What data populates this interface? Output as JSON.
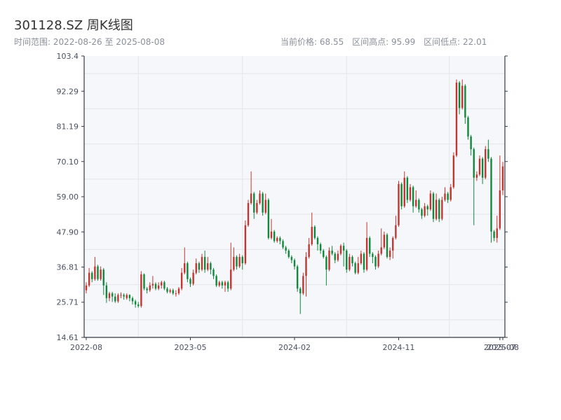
{
  "header": {
    "title": "301128.SZ 周K线图",
    "range_label": "时间范围:",
    "range_start": "2022-08-26",
    "range_sep": "至",
    "range_end": "2025-08-08",
    "current_label": "当前价格:",
    "current_value": "68.55",
    "high_label": "区间高点:",
    "high_value": "95.99",
    "low_label": "区间低点:",
    "low_value": "22.01"
  },
  "colors": {
    "up": "#c23531",
    "down": "#12883c",
    "plot_bg": "#f5f7fa",
    "grid": "#e3e6eb",
    "axis": "#333a45",
    "tick_text": "#4a5060"
  },
  "chart_data": {
    "type": "candlestick",
    "title": "301128.SZ 周K线图",
    "ylim": [
      14.61,
      103.4
    ],
    "y_ticks": [
      "14.61",
      "25.71",
      "36.81",
      "47.90",
      "59.00",
      "70.10",
      "81.19",
      "92.29",
      "103.4"
    ],
    "x_ticks": [
      {
        "label": "2022-08",
        "week": 0
      },
      {
        "label": "2023-05",
        "week": 36
      },
      {
        "label": "2024-02",
        "week": 72
      },
      {
        "label": "2024-11",
        "week": 108
      },
      {
        "label": "2025-07",
        "week": 143
      },
      {
        "label": "2025-08",
        "week": 144
      }
    ],
    "week_count": 145,
    "grid": true,
    "candles": [
      [
        0,
        29.5,
        31.0,
        32.0,
        28.5
      ],
      [
        1,
        31.0,
        35.0,
        36.5,
        30.5
      ],
      [
        2,
        35.0,
        33.0,
        35.5,
        32.0
      ],
      [
        3,
        33.0,
        37.0,
        40.0,
        32.5
      ],
      [
        4,
        37.0,
        33.0,
        37.5,
        32.5
      ],
      [
        5,
        33.0,
        36.0,
        37.0,
        32.5
      ],
      [
        6,
        36.0,
        31.0,
        36.5,
        28.0
      ],
      [
        7,
        31.0,
        27.0,
        32.0,
        25.5
      ],
      [
        8,
        27.0,
        28.5,
        29.0,
        26.0
      ],
      [
        9,
        28.5,
        27.5,
        29.0,
        25.8
      ],
      [
        10,
        27.5,
        26.0,
        28.5,
        25.5
      ],
      [
        11,
        26.0,
        28.0,
        28.5,
        25.5
      ],
      [
        12,
        28.0,
        28.0,
        28.8,
        27.0
      ],
      [
        13,
        28.0,
        27.5,
        28.5,
        26.5
      ],
      [
        14,
        27.0,
        28.0,
        28.5,
        26.5
      ],
      [
        15,
        28.0,
        27.0,
        28.2,
        26.0
      ],
      [
        16,
        27.0,
        26.0,
        27.5,
        25.0
      ],
      [
        17,
        26.0,
        25.0,
        26.5,
        24.0
      ],
      [
        18,
        25.0,
        24.5,
        25.8,
        24.0
      ],
      [
        19,
        24.5,
        34.5,
        35.5,
        24.0
      ],
      [
        20,
        34.5,
        30.0,
        34.8,
        29.5
      ],
      [
        21,
        30.0,
        29.5,
        30.5,
        28.5
      ],
      [
        22,
        29.5,
        31.0,
        32.0,
        29.0
      ],
      [
        23,
        31.0,
        31.5,
        34.0,
        30.0
      ],
      [
        24,
        31.5,
        30.0,
        32.0,
        29.5
      ],
      [
        25,
        30.0,
        31.0,
        32.0,
        29.5
      ],
      [
        26,
        31.0,
        32.0,
        32.5,
        30.0
      ],
      [
        27,
        32.0,
        30.0,
        32.5,
        29.5
      ],
      [
        28,
        30.0,
        29.0,
        30.5,
        28.5
      ],
      [
        29,
        29.0,
        29.5,
        30.0,
        28.5
      ],
      [
        30,
        29.5,
        28.5,
        30.0,
        28.0
      ],
      [
        31,
        28.5,
        28.5,
        29.5,
        27.5
      ],
      [
        32,
        28.5,
        30.0,
        30.5,
        28.0
      ],
      [
        33,
        30.0,
        35.0,
        36.5,
        29.5
      ],
      [
        34,
        35.0,
        38.0,
        43.0,
        34.5
      ],
      [
        35,
        38.0,
        33.0,
        38.5,
        32.0
      ],
      [
        36,
        33.0,
        31.5,
        33.5,
        30.5
      ],
      [
        37,
        31.5,
        35.0,
        36.0,
        31.0
      ],
      [
        38,
        35.0,
        38.0,
        39.5,
        34.5
      ],
      [
        39,
        38.0,
        36.0,
        38.5,
        35.0
      ],
      [
        40,
        36.0,
        40.0,
        41.0,
        35.5
      ],
      [
        41,
        40.0,
        36.0,
        42.0,
        35.0
      ],
      [
        42,
        36.0,
        38.0,
        40.0,
        35.5
      ],
      [
        43,
        38.0,
        36.0,
        38.5,
        34.5
      ],
      [
        44,
        36.0,
        34.0,
        36.5,
        33.0
      ],
      [
        45,
        34.0,
        31.0,
        34.5,
        30.5
      ],
      [
        46,
        31.0,
        32.0,
        32.5,
        30.5
      ],
      [
        47,
        32.0,
        31.0,
        32.5,
        30.0
      ],
      [
        48,
        31.0,
        32.0,
        32.5,
        29.0
      ],
      [
        49,
        32.0,
        30.0,
        32.5,
        29.0
      ],
      [
        50,
        30.0,
        36.0,
        44.5,
        29.5
      ],
      [
        51,
        36.0,
        40.0,
        43.0,
        35.5
      ],
      [
        52,
        40.0,
        37.0,
        40.5,
        36.0
      ],
      [
        53,
        37.0,
        40.0,
        41.0,
        36.5
      ],
      [
        54,
        40.0,
        38.0,
        40.5,
        36.0
      ],
      [
        55,
        38.0,
        50.0,
        51.5,
        37.5
      ],
      [
        56,
        50.0,
        57.0,
        58.0,
        49.5
      ],
      [
        57,
        57.0,
        60.0,
        67.0,
        56.5
      ],
      [
        58,
        60.0,
        54.0,
        60.5,
        52.0
      ],
      [
        59,
        54.0,
        57.0,
        58.0,
        53.5
      ],
      [
        60,
        57.0,
        60.0,
        61.0,
        56.5
      ],
      [
        61,
        60.0,
        54.0,
        60.5,
        53.0
      ],
      [
        62,
        54.0,
        58.0,
        60.0,
        53.5
      ],
      [
        63,
        58.0,
        46.0,
        58.5,
        45.5
      ],
      [
        64,
        46.0,
        48.0,
        52.0,
        45.5
      ],
      [
        65,
        48.0,
        45.0,
        48.5,
        44.5
      ],
      [
        66,
        45.0,
        46.0,
        46.5,
        44.5
      ],
      [
        67,
        46.0,
        45.0,
        46.5,
        44.0
      ],
      [
        68,
        45.0,
        43.0,
        45.5,
        42.5
      ],
      [
        69,
        43.0,
        42.0,
        43.5,
        41.0
      ],
      [
        70,
        42.0,
        40.0,
        42.5,
        39.5
      ],
      [
        71,
        40.0,
        39.0,
        40.5,
        38.0
      ],
      [
        72,
        39.0,
        37.0,
        39.5,
        36.0
      ],
      [
        73,
        37.0,
        30.0,
        37.5,
        29.0
      ],
      [
        74,
        30.0,
        28.5,
        30.5,
        22.0
      ],
      [
        75,
        28.5,
        34.0,
        35.0,
        28.0
      ],
      [
        76,
        34.0,
        40.0,
        41.5,
        27.5
      ],
      [
        77,
        40.0,
        44.0,
        46.0,
        39.5
      ],
      [
        78,
        44.0,
        49.5,
        54.0,
        43.5
      ],
      [
        79,
        49.5,
        46.0,
        50.0,
        45.5
      ],
      [
        80,
        46.0,
        44.0,
        46.5,
        42.0
      ],
      [
        81,
        44.0,
        42.0,
        44.5,
        41.0
      ],
      [
        82,
        42.0,
        40.0,
        42.5,
        39.5
      ],
      [
        83,
        40.0,
        36.0,
        40.5,
        31.0
      ],
      [
        84,
        36.0,
        42.0,
        43.0,
        35.5
      ],
      [
        85,
        42.0,
        41.0,
        43.5,
        40.5
      ],
      [
        86,
        41.0,
        39.0,
        41.5,
        38.0
      ],
      [
        87,
        39.0,
        41.0,
        42.0,
        38.5
      ],
      [
        88,
        41.0,
        43.5,
        44.0,
        40.5
      ],
      [
        89,
        43.5,
        42.0,
        44.5,
        37.0
      ],
      [
        90,
        42.0,
        36.0,
        42.5,
        35.0
      ],
      [
        91,
        36.0,
        40.0,
        41.0,
        35.5
      ],
      [
        92,
        40.0,
        38.0,
        40.5,
        37.0
      ],
      [
        93,
        38.0,
        35.0,
        38.5,
        34.5
      ],
      [
        94,
        35.0,
        38.0,
        40.0,
        34.5
      ],
      [
        95,
        38.0,
        41.0,
        42.0,
        37.5
      ],
      [
        96,
        41.0,
        36.0,
        41.5,
        35.0
      ],
      [
        97,
        36.0,
        46.0,
        51.0,
        35.5
      ],
      [
        98,
        46.0,
        41.0,
        46.5,
        40.0
      ],
      [
        99,
        41.0,
        40.0,
        41.5,
        38.0
      ],
      [
        100,
        40.0,
        37.0,
        40.5,
        36.0
      ],
      [
        101,
        37.0,
        41.0,
        42.0,
        36.5
      ],
      [
        102,
        41.0,
        43.0,
        49.0,
        40.5
      ],
      [
        103,
        43.0,
        47.0,
        48.0,
        42.5
      ],
      [
        104,
        47.0,
        40.0,
        47.5,
        39.5
      ],
      [
        105,
        40.0,
        42.0,
        43.0,
        39.0
      ],
      [
        106,
        42.0,
        46.0,
        46.5,
        39.5
      ],
      [
        107,
        46.0,
        50.0,
        53.0,
        45.5
      ],
      [
        108,
        50.0,
        63.0,
        64.0,
        49.5
      ],
      [
        109,
        63.0,
        56.0,
        63.5,
        55.0
      ],
      [
        110,
        56.0,
        65.0,
        67.0,
        55.5
      ],
      [
        111,
        65.0,
        58.0,
        65.5,
        57.0
      ],
      [
        112,
        58.0,
        62.0,
        63.0,
        57.5
      ],
      [
        113,
        62.0,
        56.0,
        62.5,
        54.0
      ],
      [
        114,
        56.0,
        58.0,
        61.0,
        55.5
      ],
      [
        115,
        58.0,
        55.0,
        58.5,
        54.0
      ],
      [
        116,
        55.0,
        53.0,
        55.5,
        52.0
      ],
      [
        117,
        53.0,
        56.0,
        57.0,
        52.5
      ],
      [
        118,
        56.0,
        55.0,
        56.5,
        53.0
      ],
      [
        119,
        55.0,
        60.0,
        61.0,
        54.5
      ],
      [
        120,
        60.0,
        52.0,
        60.5,
        51.0
      ],
      [
        121,
        52.0,
        58.0,
        60.0,
        51.5
      ],
      [
        122,
        58.0,
        52.0,
        58.5,
        51.0
      ],
      [
        123,
        52.0,
        58.0,
        59.0,
        51.5
      ],
      [
        124,
        58.0,
        60.0,
        62.0,
        57.5
      ],
      [
        125,
        60.0,
        58.0,
        60.5,
        57.0
      ],
      [
        126,
        58.0,
        62.0,
        63.0,
        57.5
      ],
      [
        127,
        62.0,
        72.0,
        73.0,
        61.5
      ],
      [
        128,
        72.0,
        95.0,
        96.0,
        71.5
      ],
      [
        129,
        95.0,
        87.0,
        95.5,
        85.0
      ],
      [
        130,
        87.0,
        94.0,
        95.99,
        86.5
      ],
      [
        131,
        94.0,
        84.0,
        94.5,
        82.0
      ],
      [
        132,
        84.0,
        78.0,
        84.5,
        77.0
      ],
      [
        133,
        78.0,
        74.0,
        78.5,
        72.0
      ],
      [
        134,
        74.0,
        65.0,
        74.5,
        50.0
      ],
      [
        135,
        65.0,
        66.0,
        67.0,
        64.0
      ],
      [
        136,
        66.0,
        71.0,
        72.0,
        65.5
      ],
      [
        137,
        71.0,
        65.0,
        71.5,
        63.0
      ],
      [
        138,
        65.0,
        74.0,
        75.0,
        64.5
      ],
      [
        139,
        74.0,
        71.0,
        77.0,
        70.0
      ],
      [
        140,
        71.0,
        48.0,
        71.5,
        44.5
      ],
      [
        141,
        48.0,
        46.0,
        48.5,
        45.0
      ],
      [
        142,
        46.0,
        49.0,
        53.0,
        44.5
      ],
      [
        143,
        49.0,
        61.0,
        72.0,
        48.5
      ],
      [
        144,
        61.0,
        68.55,
        70.0,
        59.5
      ]
    ]
  }
}
